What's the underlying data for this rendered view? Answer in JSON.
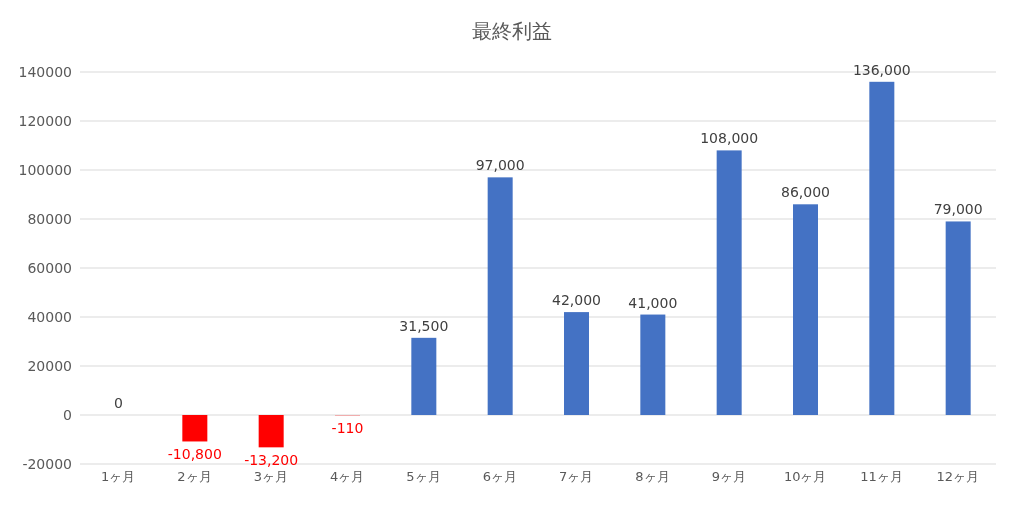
{
  "chart_data": {
    "type": "bar",
    "title": "最終利益",
    "categories": [
      "1ヶ月",
      "2ヶ月",
      "3ヶ月",
      "4ヶ月",
      "5ヶ月",
      "6ヶ月",
      "7ヶ月",
      "8ヶ月",
      "9ヶ月",
      "10ヶ月",
      "11ヶ月",
      "12ヶ月"
    ],
    "values": [
      0,
      -10800,
      -13200,
      -110,
      31500,
      97000,
      42000,
      41000,
      108000,
      86000,
      136000,
      79000
    ],
    "value_labels": [
      "0",
      "-10,800",
      "-13,200",
      "-110",
      "31,500",
      "97,000",
      "42,000",
      "41,000",
      "108,000",
      "86,000",
      "136,000",
      "79,000"
    ],
    "colors": [
      "#4472c4",
      "#ff0000",
      "#ff0000",
      "#ff0000",
      "#4472c4",
      "#4472c4",
      "#4472c4",
      "#4472c4",
      "#4472c4",
      "#4472c4",
      "#4472c4",
      "#4472c4"
    ],
    "ylim": [
      -20000,
      140000
    ],
    "yticks": [
      -20000,
      0,
      20000,
      40000,
      60000,
      80000,
      100000,
      120000,
      140000
    ],
    "grid": "y",
    "legend": false
  }
}
